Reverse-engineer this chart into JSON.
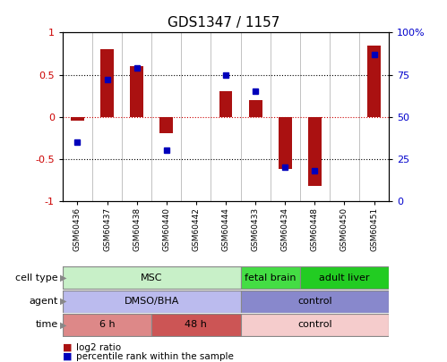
{
  "title": "GDS1347 / 1157",
  "samples": [
    "GSM60436",
    "GSM60437",
    "GSM60438",
    "GSM60440",
    "GSM60442",
    "GSM60444",
    "GSM60433",
    "GSM60434",
    "GSM60448",
    "GSM60450",
    "GSM60451"
  ],
  "log2_ratio": [
    -0.05,
    0.8,
    0.6,
    -0.2,
    0.0,
    0.3,
    0.2,
    -0.62,
    -0.82,
    0.0,
    0.85
  ],
  "pct_rank": [
    35,
    72,
    79,
    30,
    null,
    75,
    65,
    20,
    18,
    null,
    87
  ],
  "cell_type_groups": [
    {
      "label": "MSC",
      "start": 0,
      "end": 6,
      "color": "#c8f0c8"
    },
    {
      "label": "fetal brain",
      "start": 6,
      "end": 8,
      "color": "#44dd44"
    },
    {
      "label": "adult liver",
      "start": 8,
      "end": 11,
      "color": "#22cc22"
    }
  ],
  "agent_groups": [
    {
      "label": "DMSO/BHA",
      "start": 0,
      "end": 6,
      "color": "#bbbbee"
    },
    {
      "label": "control",
      "start": 6,
      "end": 11,
      "color": "#8888cc"
    }
  ],
  "time_groups": [
    {
      "label": "6 h",
      "start": 0,
      "end": 3,
      "color": "#dd8888"
    },
    {
      "label": "48 h",
      "start": 3,
      "end": 6,
      "color": "#cc5555"
    },
    {
      "label": "control",
      "start": 6,
      "end": 11,
      "color": "#f5cccc"
    }
  ],
  "row_labels": [
    "cell type",
    "agent",
    "time"
  ],
  "legend_items": [
    {
      "label": "log2 ratio",
      "color": "#cc0000"
    },
    {
      "label": "percentile rank within the sample",
      "color": "#0000cc"
    }
  ],
  "ylim": [
    -1,
    1
  ],
  "y2lim": [
    0,
    100
  ],
  "y_ticks": [
    -1,
    -0.5,
    0,
    0.5,
    1
  ],
  "y2_ticks": [
    0,
    25,
    50,
    75,
    100
  ],
  "y2_tick_labels": [
    "0",
    "25",
    "50",
    "75",
    "100%"
  ],
  "bar_color": "#aa1111",
  "dot_color": "#0000bb",
  "zero_line_color": "#cc0000",
  "grid_color": "#000000",
  "bg_color": "#ffffff"
}
